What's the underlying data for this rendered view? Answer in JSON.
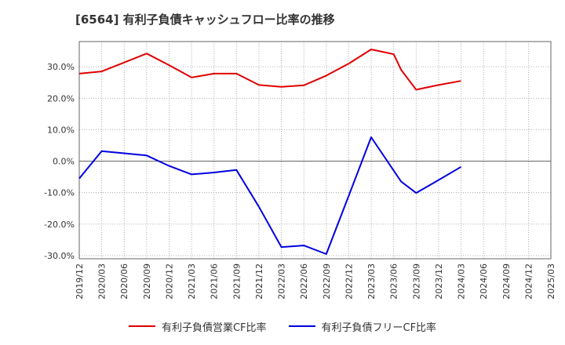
{
  "title": "[6564]  有利子負債キャッシュフロー比率の推移",
  "chart_data": {
    "type": "line",
    "title": "[6564]  有利子負債キャッシュフロー比率の推移",
    "xlabel": "",
    "ylabel": "",
    "ylim": [
      -31,
      38
    ],
    "yticks": [
      -30,
      -20,
      -10,
      0,
      10,
      20,
      30
    ],
    "ytick_labels": [
      "-30.0%",
      "-20.0%",
      "-10.0%",
      "0.0%",
      "10.0%",
      "20.0%",
      "30.0%"
    ],
    "x_range": [
      "2019/12",
      "2025/03"
    ],
    "xtick_labels": [
      "2019/12",
      "2020/03",
      "2020/06",
      "2020/09",
      "2020/12",
      "2021/03",
      "2021/06",
      "2021/09",
      "2021/12",
      "2022/03",
      "2022/06",
      "2022/09",
      "2022/12",
      "2023/03",
      "2023/06",
      "2023/09",
      "2023/12",
      "2024/03",
      "2024/06",
      "2024/09",
      "2024/12",
      "2025/03"
    ],
    "grid": true,
    "legend_position": "bottom",
    "series": [
      {
        "name": "有利子負債営業CF比率",
        "color": "#e00000",
        "points": [
          [
            "2019/12",
            27.8
          ],
          [
            "2020/03",
            28.5
          ],
          [
            "2020/09",
            34.2
          ],
          [
            "2020/12",
            30.5
          ],
          [
            "2021/03",
            26.6
          ],
          [
            "2021/06",
            27.8
          ],
          [
            "2021/09",
            27.8
          ],
          [
            "2021/12",
            24.2
          ],
          [
            "2022/03",
            23.6
          ],
          [
            "2022/06",
            24.1
          ],
          [
            "2022/09",
            27.2
          ],
          [
            "2022/12",
            31.0
          ],
          [
            "2023/03",
            35.5
          ],
          [
            "2023/06",
            34.0
          ],
          [
            "2023/07",
            29.0
          ],
          [
            "2023/09",
            22.7
          ],
          [
            "2023/12",
            24.2
          ],
          [
            "2024/03",
            25.5
          ]
        ]
      },
      {
        "name": "有利子負債フリーCF比率",
        "color": "#0000e0",
        "points": [
          [
            "2019/12",
            -5.5
          ],
          [
            "2020/03",
            3.2
          ],
          [
            "2020/09",
            1.8
          ],
          [
            "2020/12",
            -1.5
          ],
          [
            "2021/03",
            -4.2
          ],
          [
            "2021/06",
            -3.6
          ],
          [
            "2021/09",
            -2.8
          ],
          [
            "2021/12",
            -14.5
          ],
          [
            "2022/03",
            -27.3
          ],
          [
            "2022/06",
            -26.8
          ],
          [
            "2022/09",
            -29.5
          ],
          [
            "2022/12",
            -11.0
          ],
          [
            "2023/03",
            7.6
          ],
          [
            "2023/06",
            -3.0
          ],
          [
            "2023/07",
            -6.5
          ],
          [
            "2023/09",
            -10.1
          ],
          [
            "2023/12",
            -6.0
          ],
          [
            "2024/03",
            -1.8
          ]
        ]
      }
    ]
  }
}
